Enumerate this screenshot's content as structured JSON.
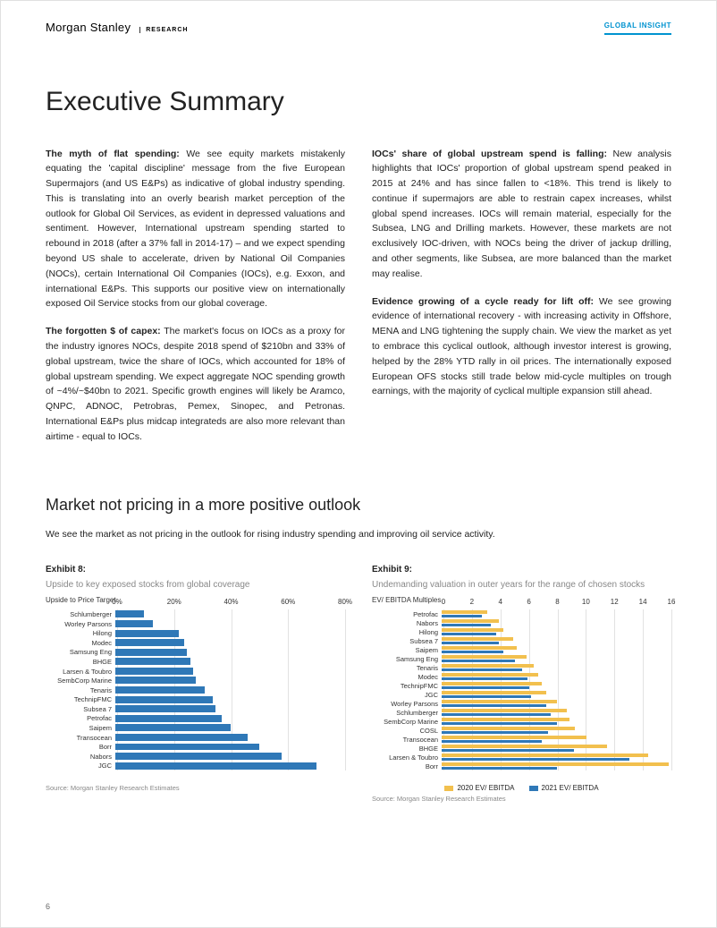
{
  "header": {
    "brand": "Morgan Stanley",
    "research": "RESEARCH",
    "badge": "GLOBAL INSIGHT"
  },
  "title": "Executive Summary",
  "left_col": {
    "p1_lead": "The myth of flat spending:",
    "p1": " We see equity markets mistakenly equating the 'capital discipline' message from the five European Supermajors (and US E&Ps) as indicative of global industry spending. This is translating into an overly bearish market perception of the outlook for Global Oil Services, as evident in depressed valuations and sentiment. However, International upstream spending started to rebound in 2018 (after a 37% fall in 2014-17) – and we expect spending beyond US shale to accelerate, driven by National Oil Companies (NOCs), certain International Oil Companies (IOCs), e.g. Exxon, and international E&Ps. This supports our positive view on internationally exposed Oil Service stocks from our global coverage.",
    "p2_lead": "The forgotten $ of capex:",
    "p2": " The market's focus on IOCs as a proxy for the industry ignores NOCs, despite 2018 spend of $210bn and 33% of global upstream, twice the share of IOCs, which accounted for 18% of global upstream spending. We expect aggregate NOC spending growth of ~4%/~$40bn to 2021. Specific growth engines will likely be Aramco, QNPC, ADNOC, Petrobras, Pemex, Sinopec, and Petronas. International E&Ps plus midcap integrateds are also more relevant than airtime - equal to IOCs."
  },
  "right_col": {
    "p1_lead": "IOCs' share of global upstream spend is falling:",
    "p1": " New analysis highlights that IOCs' proportion of global upstream spend peaked in 2015 at 24% and has since fallen to <18%. This trend is likely to continue if supermajors are able to restrain capex increases, whilst global spend increases. IOCs will remain material, especially for the Subsea, LNG and Drilling markets. However, these markets are not exclusively IOC-driven, with NOCs being the driver of jackup drilling, and other segments, like Subsea, are more balanced than the market may realise.",
    "p2_lead": "Evidence growing of a cycle ready for lift off:",
    "p2": " We see growing evidence of international recovery - with increasing activity in Offshore, MENA and LNG tightening the supply chain. We view the market as yet to embrace this cyclical outlook, although investor interest is growing, helped by the 28% YTD rally in oil prices. The internationally exposed European OFS stocks still trade below mid-cycle multiples on trough earnings, with the majority of cyclical multiple expansion still ahead."
  },
  "section2_title": "Market not pricing in a more positive outlook",
  "section2_text": "We see the market as not pricing in the outlook for rising industry spending and improving oil service activity.",
  "ex8": {
    "label": "Exhibit 8:",
    "title": "Upside to key exposed stocks from global coverage",
    "axis": "Upside to Price Target",
    "xmin": 0,
    "xmax": 80,
    "xstep": 20,
    "xticks": [
      "0%",
      "20%",
      "40%",
      "60%",
      "80%"
    ],
    "color": "#2f78b7",
    "grid_color": "#e2e2e2",
    "items": [
      {
        "label": "Schlumberger",
        "v": 10
      },
      {
        "label": "Worley Parsons",
        "v": 13
      },
      {
        "label": "Hilong",
        "v": 22
      },
      {
        "label": "Modec",
        "v": 24
      },
      {
        "label": "Samsung Eng",
        "v": 25
      },
      {
        "label": "BHGE",
        "v": 26
      },
      {
        "label": "Larsen & Toubro",
        "v": 27
      },
      {
        "label": "SembCorp Marine",
        "v": 28
      },
      {
        "label": "Tenaris",
        "v": 31
      },
      {
        "label": "TechnipFMC",
        "v": 34
      },
      {
        "label": "Subsea 7",
        "v": 35
      },
      {
        "label": "Petrofac",
        "v": 37
      },
      {
        "label": "Saipem",
        "v": 40
      },
      {
        "label": "Transocean",
        "v": 46
      },
      {
        "label": "Borr",
        "v": 50
      },
      {
        "label": "Nabors",
        "v": 58
      },
      {
        "label": "JGC",
        "v": 70
      }
    ],
    "source": "Source: Morgan Stanley Research Estimates"
  },
  "ex9": {
    "label": "Exhibit 9:",
    "title": "Undemanding valuation in outer years for the range of chosen stocks",
    "axis": "EV/ EBITDA Multiples",
    "xmin": 0,
    "xmax": 16,
    "xstep": 2,
    "xticks": [
      "0",
      "2",
      "4",
      "6",
      "8",
      "10",
      "12",
      "14",
      "16"
    ],
    "color_2020": "#f2c04e",
    "color_2021": "#2f78b7",
    "grid_color": "#e2e2e2",
    "legend_2020": "2020 EV/ EBITDA",
    "legend_2021": "2021 EV/ EBITDA",
    "items": [
      {
        "label": "Petrofac",
        "a": 3.2,
        "b": 2.8
      },
      {
        "label": "Nabors",
        "a": 4.0,
        "b": 3.4
      },
      {
        "label": "Hilong",
        "a": 4.3,
        "b": 3.8
      },
      {
        "label": "Subsea 7",
        "a": 5.0,
        "b": 4.0
      },
      {
        "label": "Saipem",
        "a": 5.2,
        "b": 4.3
      },
      {
        "label": "Samsung Eng",
        "a": 5.9,
        "b": 5.1
      },
      {
        "label": "Tenaris",
        "a": 6.4,
        "b": 5.6
      },
      {
        "label": "Modec",
        "a": 6.7,
        "b": 6.0
      },
      {
        "label": "TechnipFMC",
        "a": 7.0,
        "b": 6.1
      },
      {
        "label": "JGC",
        "a": 7.3,
        "b": 6.2
      },
      {
        "label": "Worley Parsons",
        "a": 8.0,
        "b": 7.3
      },
      {
        "label": "Schlumberger",
        "a": 8.7,
        "b": 7.6
      },
      {
        "label": "SembCorp Marine",
        "a": 8.9,
        "b": 8.0
      },
      {
        "label": "COSL",
        "a": 9.3,
        "b": 7.4
      },
      {
        "label": "Transocean",
        "a": 10.1,
        "b": 7.0
      },
      {
        "label": "BHGE",
        "a": 11.5,
        "b": 9.2
      },
      {
        "label": "Larsen & Toubro",
        "a": 14.4,
        "b": 13.1
      },
      {
        "label": "Borr",
        "a": 15.8,
        "b": 8.0
      }
    ],
    "source": "Source: Morgan Stanley Research Estimates"
  },
  "pagenum": "6"
}
